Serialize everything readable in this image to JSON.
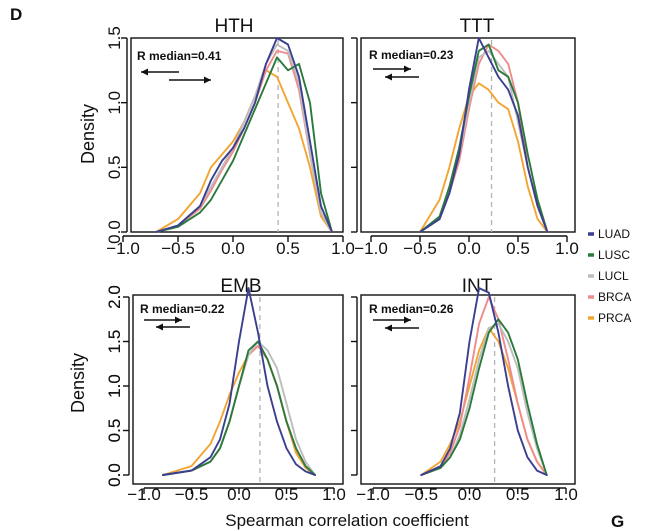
{
  "figure": {
    "panel_letter": "D",
    "corner_letter": "G",
    "ylabel": "Density",
    "xlabel": "Spearman correlation coefficient"
  },
  "legend": {
    "entries": [
      {
        "name": "LUAD",
        "color": "#3a3f8f"
      },
      {
        "name": "LUSC",
        "color": "#2a7a3b"
      },
      {
        "name": "LUCL",
        "color": "#bdbdbd"
      },
      {
        "name": "BRCA",
        "color": "#ee8c8c"
      },
      {
        "name": "PRCA",
        "color": "#f2a533"
      }
    ]
  },
  "chart_data": [
    {
      "type": "line",
      "title": "HTH",
      "annotation": "R median=0.41",
      "median": 0.41,
      "arrows": "left-over-right",
      "xlim": [
        -1.0,
        1.0
      ],
      "ylim": [
        0.0,
        1.5
      ],
      "xticks": [
        "−1.0",
        "−0.5",
        "0.0",
        "0.5",
        "1.0"
      ],
      "yticks": [
        "0.0",
        "0.5",
        "1.0",
        "1.5"
      ],
      "x": [
        -0.7,
        -0.5,
        -0.3,
        -0.2,
        -0.1,
        0.0,
        0.1,
        0.2,
        0.3,
        0.4,
        0.5,
        0.6,
        0.7,
        0.8,
        0.9
      ],
      "series": [
        {
          "name": "LUAD",
          "values": [
            0.0,
            0.05,
            0.2,
            0.4,
            0.55,
            0.65,
            0.8,
            1.0,
            1.3,
            1.5,
            1.45,
            1.2,
            0.7,
            0.2,
            0.0
          ]
        },
        {
          "name": "LUSC",
          "values": [
            0.0,
            0.04,
            0.15,
            0.25,
            0.4,
            0.55,
            0.75,
            0.95,
            1.15,
            1.35,
            1.25,
            1.3,
            1.0,
            0.3,
            0.0
          ]
        },
        {
          "name": "LUCL",
          "values": [
            0.0,
            0.05,
            0.2,
            0.35,
            0.5,
            0.65,
            0.85,
            1.05,
            1.3,
            1.45,
            1.4,
            1.15,
            0.6,
            0.15,
            0.0
          ]
        },
        {
          "name": "BRCA",
          "values": [
            0.0,
            0.05,
            0.18,
            0.32,
            0.48,
            0.62,
            0.8,
            1.0,
            1.25,
            1.4,
            1.38,
            1.1,
            0.6,
            0.15,
            0.0
          ]
        },
        {
          "name": "PRCA",
          "values": [
            0.0,
            0.1,
            0.3,
            0.5,
            0.6,
            0.7,
            0.85,
            1.05,
            1.25,
            1.2,
            1.0,
            0.8,
            0.5,
            0.12,
            0.0
          ]
        }
      ]
    },
    {
      "type": "line",
      "title": "TTT",
      "annotation": "R median=0.23",
      "median": 0.23,
      "arrows": "right-over-left",
      "xlim": [
        -1.0,
        1.0
      ],
      "ylim": [
        0.0,
        1.5
      ],
      "xticks": [
        "−1.0",
        "−0.5",
        "0.0",
        "0.5",
        "1.0"
      ],
      "yticks": [
        "0.0",
        "0.5",
        "1.0",
        "1.5"
      ],
      "x": [
        -0.5,
        -0.3,
        -0.2,
        -0.1,
        0.0,
        0.1,
        0.2,
        0.3,
        0.4,
        0.5,
        0.6,
        0.7,
        0.8
      ],
      "series": [
        {
          "name": "LUAD",
          "values": [
            0.0,
            0.1,
            0.3,
            0.6,
            1.1,
            1.5,
            1.35,
            1.2,
            1.1,
            0.9,
            0.5,
            0.2,
            0.0
          ]
        },
        {
          "name": "LUSC",
          "values": [
            0.0,
            0.12,
            0.35,
            0.65,
            1.05,
            1.4,
            1.45,
            1.25,
            1.2,
            1.0,
            0.6,
            0.25,
            0.0
          ]
        },
        {
          "name": "LUCL",
          "values": [
            0.0,
            0.1,
            0.3,
            0.6,
            1.0,
            1.35,
            1.4,
            1.3,
            1.2,
            0.85,
            0.5,
            0.2,
            0.0
          ]
        },
        {
          "name": "BRCA",
          "values": [
            0.0,
            0.1,
            0.3,
            0.55,
            0.95,
            1.3,
            1.45,
            1.4,
            1.3,
            1.0,
            0.5,
            0.2,
            0.0
          ]
        },
        {
          "name": "PRCA",
          "values": [
            0.0,
            0.25,
            0.5,
            0.8,
            1.05,
            1.15,
            1.1,
            1.0,
            0.95,
            0.7,
            0.35,
            0.1,
            0.0
          ]
        }
      ]
    },
    {
      "type": "line",
      "title": "EMB",
      "annotation": "R median=0.22",
      "median": 0.22,
      "arrows": "right-over-left",
      "xlim": [
        -1.0,
        1.0
      ],
      "ylim": [
        0.0,
        2.0
      ],
      "xticks": [
        "−1.0",
        "−0.5",
        "0.0",
        "0.5",
        "1.0"
      ],
      "yticks": [
        "0.0",
        "0.5",
        "1.0",
        "1.5",
        "2.0"
      ],
      "x": [
        -0.8,
        -0.5,
        -0.3,
        -0.2,
        -0.1,
        0.0,
        0.1,
        0.2,
        0.3,
        0.4,
        0.5,
        0.6,
        0.7,
        0.8
      ],
      "series": [
        {
          "name": "LUAD",
          "values": [
            0.0,
            0.05,
            0.2,
            0.4,
            0.8,
            1.5,
            2.1,
            1.6,
            1.0,
            0.6,
            0.3,
            0.12,
            0.04,
            0.0
          ]
        },
        {
          "name": "LUSC",
          "values": [
            0.0,
            0.05,
            0.15,
            0.3,
            0.6,
            1.0,
            1.4,
            1.5,
            1.3,
            1.0,
            0.6,
            0.3,
            0.1,
            0.0
          ]
        },
        {
          "name": "LUCL",
          "values": [
            0.0,
            0.05,
            0.15,
            0.3,
            0.6,
            1.0,
            1.35,
            1.5,
            1.4,
            1.2,
            0.8,
            0.4,
            0.15,
            0.0
          ]
        },
        {
          "name": "BRCA",
          "values": [
            0.0,
            0.05,
            0.15,
            0.3,
            0.6,
            1.0,
            1.35,
            1.45,
            1.3,
            1.0,
            0.6,
            0.3,
            0.1,
            0.0
          ]
        },
        {
          "name": "PRCA",
          "values": [
            0.0,
            0.1,
            0.35,
            0.6,
            0.9,
            1.15,
            1.35,
            1.45,
            1.3,
            1.0,
            0.6,
            0.25,
            0.08,
            0.0
          ]
        }
      ]
    },
    {
      "type": "line",
      "title": "INT",
      "annotation": "R median=0.26",
      "median": 0.26,
      "arrows": "right-over-left",
      "xlim": [
        -1.0,
        1.0
      ],
      "ylim": [
        0.0,
        2.0
      ],
      "xticks": [
        "−1.0",
        "−0.5",
        "0.0",
        "0.5",
        "1.0"
      ],
      "yticks": [
        "0.0",
        "0.5",
        "1.0",
        "1.5",
        "2.0"
      ],
      "x": [
        -0.5,
        -0.3,
        -0.2,
        -0.1,
        0.0,
        0.1,
        0.2,
        0.3,
        0.4,
        0.5,
        0.6,
        0.7,
        0.8
      ],
      "series": [
        {
          "name": "LUAD",
          "values": [
            0.0,
            0.1,
            0.3,
            0.7,
            1.5,
            2.1,
            2.05,
            1.6,
            1.0,
            0.5,
            0.2,
            0.05,
            0.0
          ]
        },
        {
          "name": "LUSC",
          "values": [
            0.0,
            0.08,
            0.2,
            0.4,
            0.75,
            1.2,
            1.6,
            1.75,
            1.6,
            1.3,
            0.8,
            0.35,
            0.0
          ]
        },
        {
          "name": "LUCL",
          "values": [
            0.0,
            0.08,
            0.2,
            0.45,
            0.85,
            1.3,
            1.65,
            1.7,
            1.5,
            1.2,
            0.7,
            0.3,
            0.0
          ]
        },
        {
          "name": "BRCA",
          "values": [
            0.0,
            0.08,
            0.25,
            0.55,
            1.1,
            1.7,
            2.0,
            1.75,
            1.3,
            0.8,
            0.4,
            0.15,
            0.0
          ]
        },
        {
          "name": "PRCA",
          "values": [
            0.0,
            0.15,
            0.35,
            0.6,
            1.0,
            1.4,
            1.65,
            1.5,
            1.2,
            0.8,
            0.4,
            0.15,
            0.0
          ]
        }
      ]
    }
  ]
}
